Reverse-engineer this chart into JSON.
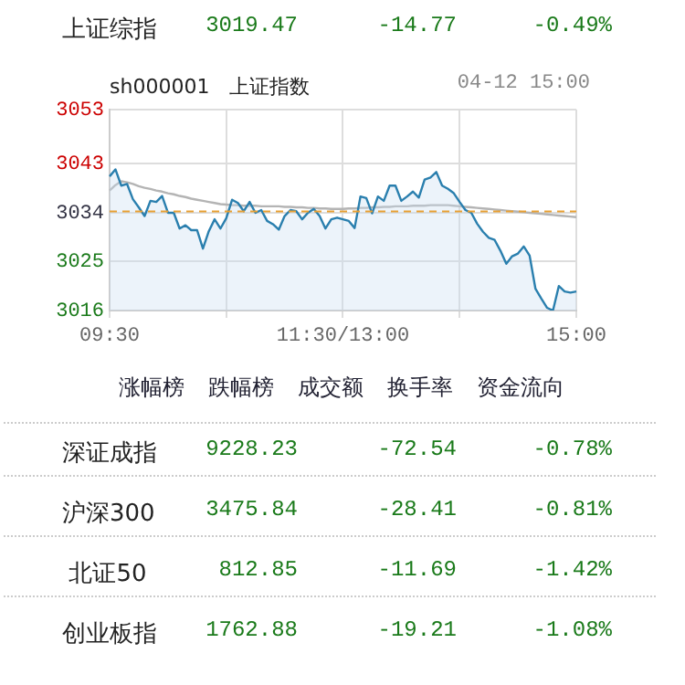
{
  "chart_data": {
    "type": "area",
    "title": "sh000001　上证指数",
    "subtitle": "04-12 15:00",
    "annotations": [
      "上证综指",
      "3019.47",
      "-14.77",
      "-0.49%",
      "涨幅榜",
      "跌幅榜",
      "成交额",
      "换手率",
      "资金流向",
      "深证成指",
      "9228.23",
      "-72.54",
      "-0.78%",
      "沪深300",
      "3475.84",
      "-28.41",
      "-0.81%",
      "北证50",
      "812.85",
      "-11.69",
      "-1.42%",
      "创业板指",
      "1762.88",
      "-19.21",
      "-1.08%"
    ],
    "categories": [
      "09:30",
      null,
      null,
      null,
      null,
      null,
      null,
      null,
      null,
      null,
      null,
      null,
      null,
      null,
      null,
      null,
      null,
      null,
      null,
      null,
      null,
      null,
      null,
      null,
      null,
      null,
      null,
      null,
      null,
      null,
      null,
      null,
      null,
      null,
      null,
      null,
      null,
      null,
      null,
      null,
      "11:30/13:00",
      null,
      null,
      null,
      null,
      null,
      null,
      null,
      null,
      null,
      null,
      null,
      null,
      null,
      null,
      null,
      null,
      null,
      null,
      null,
      null,
      null,
      null,
      null,
      null,
      null,
      null,
      null,
      null,
      null,
      null,
      null,
      null,
      null,
      null,
      null,
      null,
      null,
      null,
      null,
      "15:00"
    ],
    "ylim": [
      3016,
      3053
    ],
    "yticks": [
      3016,
      3025,
      3034,
      3043,
      3053
    ],
    "grid": true,
    "legend": false,
    "marker": "none",
    "ref_lines": [
      {
        "axis": "y",
        "value": 3034.24,
        "color": "#e8a033",
        "line_style": "dashed"
      }
    ],
    "series": [
      {
        "color": "#2a7fae",
        "values": [
          3040.7,
          3042,
          3039,
          3039.3,
          3036.5,
          3035,
          3033.4,
          3036.2,
          3036,
          3037.1,
          3034,
          3034,
          3031.1,
          3031.7,
          3030.8,
          3030.8,
          3027.4,
          3030.6,
          3032.8,
          3031.1,
          3033,
          3036.4,
          3035.8,
          3034.3,
          3036,
          3034,
          3034.5,
          3032.5,
          3031.9,
          3030.9,
          3033.4,
          3034.5,
          3034.3,
          3032.8,
          3034,
          3034.7,
          3033.4,
          3031.1,
          3032.8,
          3033.1,
          3032.8,
          3032.5,
          3031.2,
          3037,
          3036.7,
          3033.9,
          3037,
          3036.2,
          3039,
          3039,
          3036.2,
          3037,
          3037.9,
          3036.8,
          3040.1,
          3040.5,
          3041.5,
          3039,
          3038.4,
          3037.6,
          3036,
          3034.5,
          3034,
          3032,
          3030.5,
          3029.4,
          3029,
          3027,
          3024.6,
          3026,
          3026.5,
          3027.8,
          3026.1,
          3020,
          3018.2,
          3016.5,
          3016,
          3020.5,
          3019.5,
          3019.3,
          3019.5
        ]
      },
      {
        "type": "line",
        "color": "#b4b4b4",
        "values": [
          3038.1,
          3039.1,
          3039.8,
          3039.6,
          3039.3,
          3038.9,
          3038.6,
          3038.4,
          3038.1,
          3037.9,
          3037.6,
          3037.4,
          3037.1,
          3036.9,
          3036.6,
          3036.4,
          3036.2,
          3036,
          3035.8,
          3035.6,
          3035.5,
          3035.4,
          3035.4,
          3035.3,
          3035.3,
          3035.3,
          3035.2,
          3035.2,
          3035.2,
          3035.2,
          3035.1,
          3035.1,
          3035,
          3035,
          3034.9,
          3034.9,
          3034.8,
          3034.8,
          3034.7,
          3034.7,
          3034.7,
          3034.8,
          3034.8,
          3034.9,
          3034.9,
          3035,
          3035,
          3035.1,
          3035.1,
          3035.2,
          3035.2,
          3035.2,
          3035.3,
          3035.3,
          3035.3,
          3035.4,
          3035.4,
          3035.4,
          3035.4,
          3035.3,
          3035.2,
          3035.1,
          3035,
          3034.9,
          3034.8,
          3034.7,
          3034.6,
          3034.5,
          3034.4,
          3034.3,
          3034.2,
          3034.1,
          3034,
          3033.9,
          3033.8,
          3033.7,
          3033.6,
          3033.5,
          3033.4,
          3033.3,
          3033.2
        ]
      }
    ]
  }
}
